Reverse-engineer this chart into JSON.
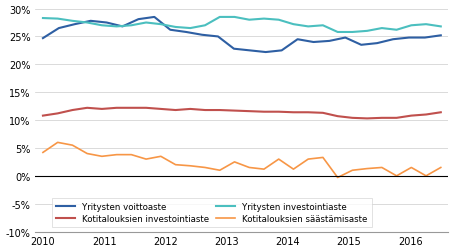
{
  "title": "",
  "xlabel": "",
  "ylabel": "",
  "ylim": [
    -0.1,
    0.3
  ],
  "yticks": [
    -0.1,
    -0.05,
    0.0,
    0.05,
    0.1,
    0.15,
    0.2,
    0.25,
    0.3
  ],
  "xticks": [
    0,
    4,
    8,
    12,
    16,
    20,
    24
  ],
  "xtick_labels": [
    "2010",
    "2011",
    "2012",
    "2013",
    "2014",
    "2015",
    "2016"
  ],
  "colors": {
    "voittoaste": "#2E5FA3",
    "investointiaste_yritys": "#4BBFBF",
    "investointiaste_kotitalous": "#C0504D",
    "saastamisaste": "#F79646"
  },
  "series": {
    "voittoaste": [
      0.247,
      0.265,
      0.272,
      0.278,
      0.275,
      0.268,
      0.281,
      0.285,
      0.262,
      0.258,
      0.253,
      0.25,
      0.228,
      0.225,
      0.222,
      0.225,
      0.245,
      0.24,
      0.242,
      0.248,
      0.235,
      0.238,
      0.245,
      0.248,
      0.248,
      0.252
    ],
    "investointiaste_yritys": [
      0.283,
      0.282,
      0.278,
      0.275,
      0.27,
      0.268,
      0.27,
      0.275,
      0.272,
      0.267,
      0.265,
      0.27,
      0.285,
      0.285,
      0.28,
      0.282,
      0.28,
      0.272,
      0.268,
      0.27,
      0.258,
      0.258,
      0.26,
      0.265,
      0.262,
      0.27,
      0.272,
      0.268
    ],
    "investointiaste_kotitalous": [
      0.108,
      0.112,
      0.118,
      0.122,
      0.12,
      0.122,
      0.122,
      0.122,
      0.12,
      0.118,
      0.12,
      0.118,
      0.118,
      0.117,
      0.116,
      0.115,
      0.115,
      0.114,
      0.114,
      0.113,
      0.107,
      0.104,
      0.103,
      0.104,
      0.104,
      0.108,
      0.11,
      0.114
    ],
    "saastamisaste": [
      0.042,
      0.06,
      0.055,
      0.04,
      0.035,
      0.038,
      0.038,
      0.03,
      0.035,
      0.02,
      0.018,
      0.015,
      0.01,
      0.025,
      0.015,
      0.012,
      0.03,
      0.012,
      0.03,
      0.033,
      -0.003,
      0.01,
      0.013,
      0.015,
      0.0,
      0.015,
      0.0,
      0.015
    ]
  },
  "legend": {
    "voittoaste": "Yritysten voittoaste",
    "investointiaste_yritys": "Yritysten investointiaste",
    "investointiaste_kotitalous": "Kotitalouksien investointiaste",
    "saastamisaste": "Kotitalouksien säästämisaste"
  },
  "background_color": "#FFFFFF",
  "grid_color": "#CCCCCC"
}
